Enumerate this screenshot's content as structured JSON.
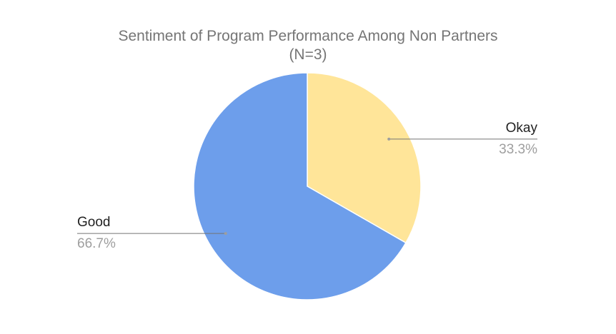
{
  "chart_data": {
    "type": "pie",
    "title_lines": [
      "Sentiment of Program Performance Among Non Partners",
      "(N=3)"
    ],
    "slices": [
      {
        "label": "Okay",
        "value": 33.3,
        "percent_label": "33.3%",
        "color": "#ffe599"
      },
      {
        "label": "Good",
        "value": 66.7,
        "percent_label": "66.7%",
        "color": "#6d9eeb"
      }
    ],
    "start": "12 o'clock",
    "direction": "clockwise",
    "legend": "none",
    "labels": "outside with leader lines"
  }
}
